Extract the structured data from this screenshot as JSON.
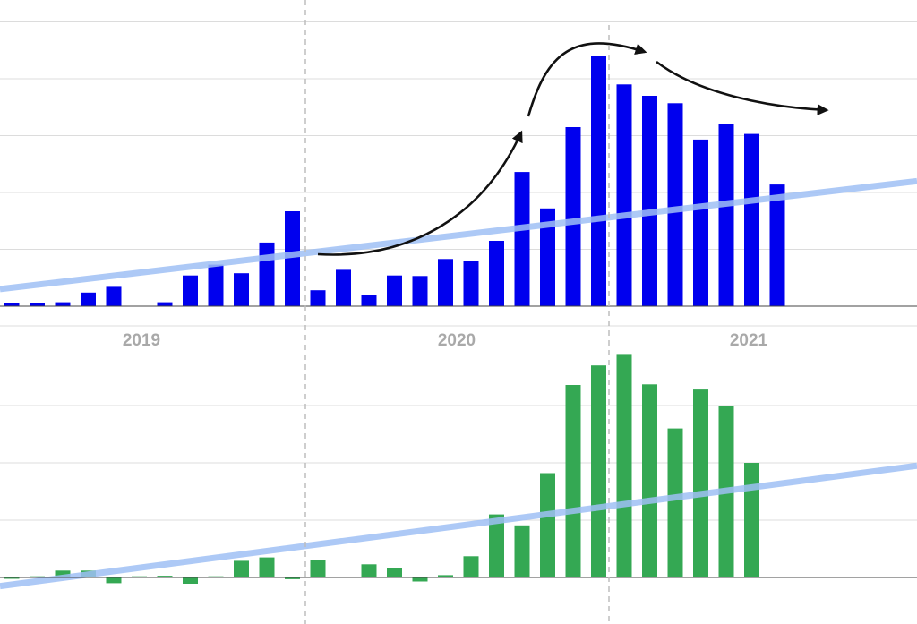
{
  "chart_data": [
    {
      "type": "bar",
      "title": "",
      "xlabel": "",
      "ylabel": "",
      "grid": true,
      "x_tick_labels": [
        "2019",
        "2020",
        "2021"
      ],
      "color": "#0000ee",
      "trend_color": "#9fbff5",
      "ylim": [
        0,
        5
      ],
      "values": [
        0.05,
        0.05,
        0.07,
        0.24,
        0.34,
        0,
        0.07,
        0.54,
        0.73,
        0.58,
        1.12,
        1.67,
        0.28,
        0.64,
        0.19,
        0.54,
        0.53,
        0.83,
        0.79,
        1.15,
        2.36,
        1.72,
        3.15,
        4.4,
        3.9,
        3.7,
        3.57,
        2.93,
        3.2,
        3.03,
        2.14
      ],
      "trend": [
        0.3,
        2.2
      ],
      "annotations": [
        "curved-arrow-growth",
        "curved-arrow-peak",
        "curved-arrow-decline"
      ]
    },
    {
      "type": "bar",
      "title": "",
      "xlabel": "",
      "ylabel": "",
      "grid": true,
      "color": "#34a853",
      "trend_color": "#9fbff5",
      "ylim": [
        -0.5,
        4
      ],
      "values": [
        -0.02,
        0.02,
        0.12,
        0.12,
        -0.1,
        0.02,
        0.03,
        -0.11,
        0.02,
        0.29,
        0.35,
        -0.03,
        0.31,
        0,
        0.23,
        0.16,
        -0.07,
        0.04,
        0.37,
        1.1,
        0.91,
        1.82,
        3.36,
        3.7,
        3.9,
        3.37,
        2.6,
        3.28,
        2.99,
        2.0
      ],
      "trend": [
        -0.15,
        1.95
      ]
    }
  ]
}
